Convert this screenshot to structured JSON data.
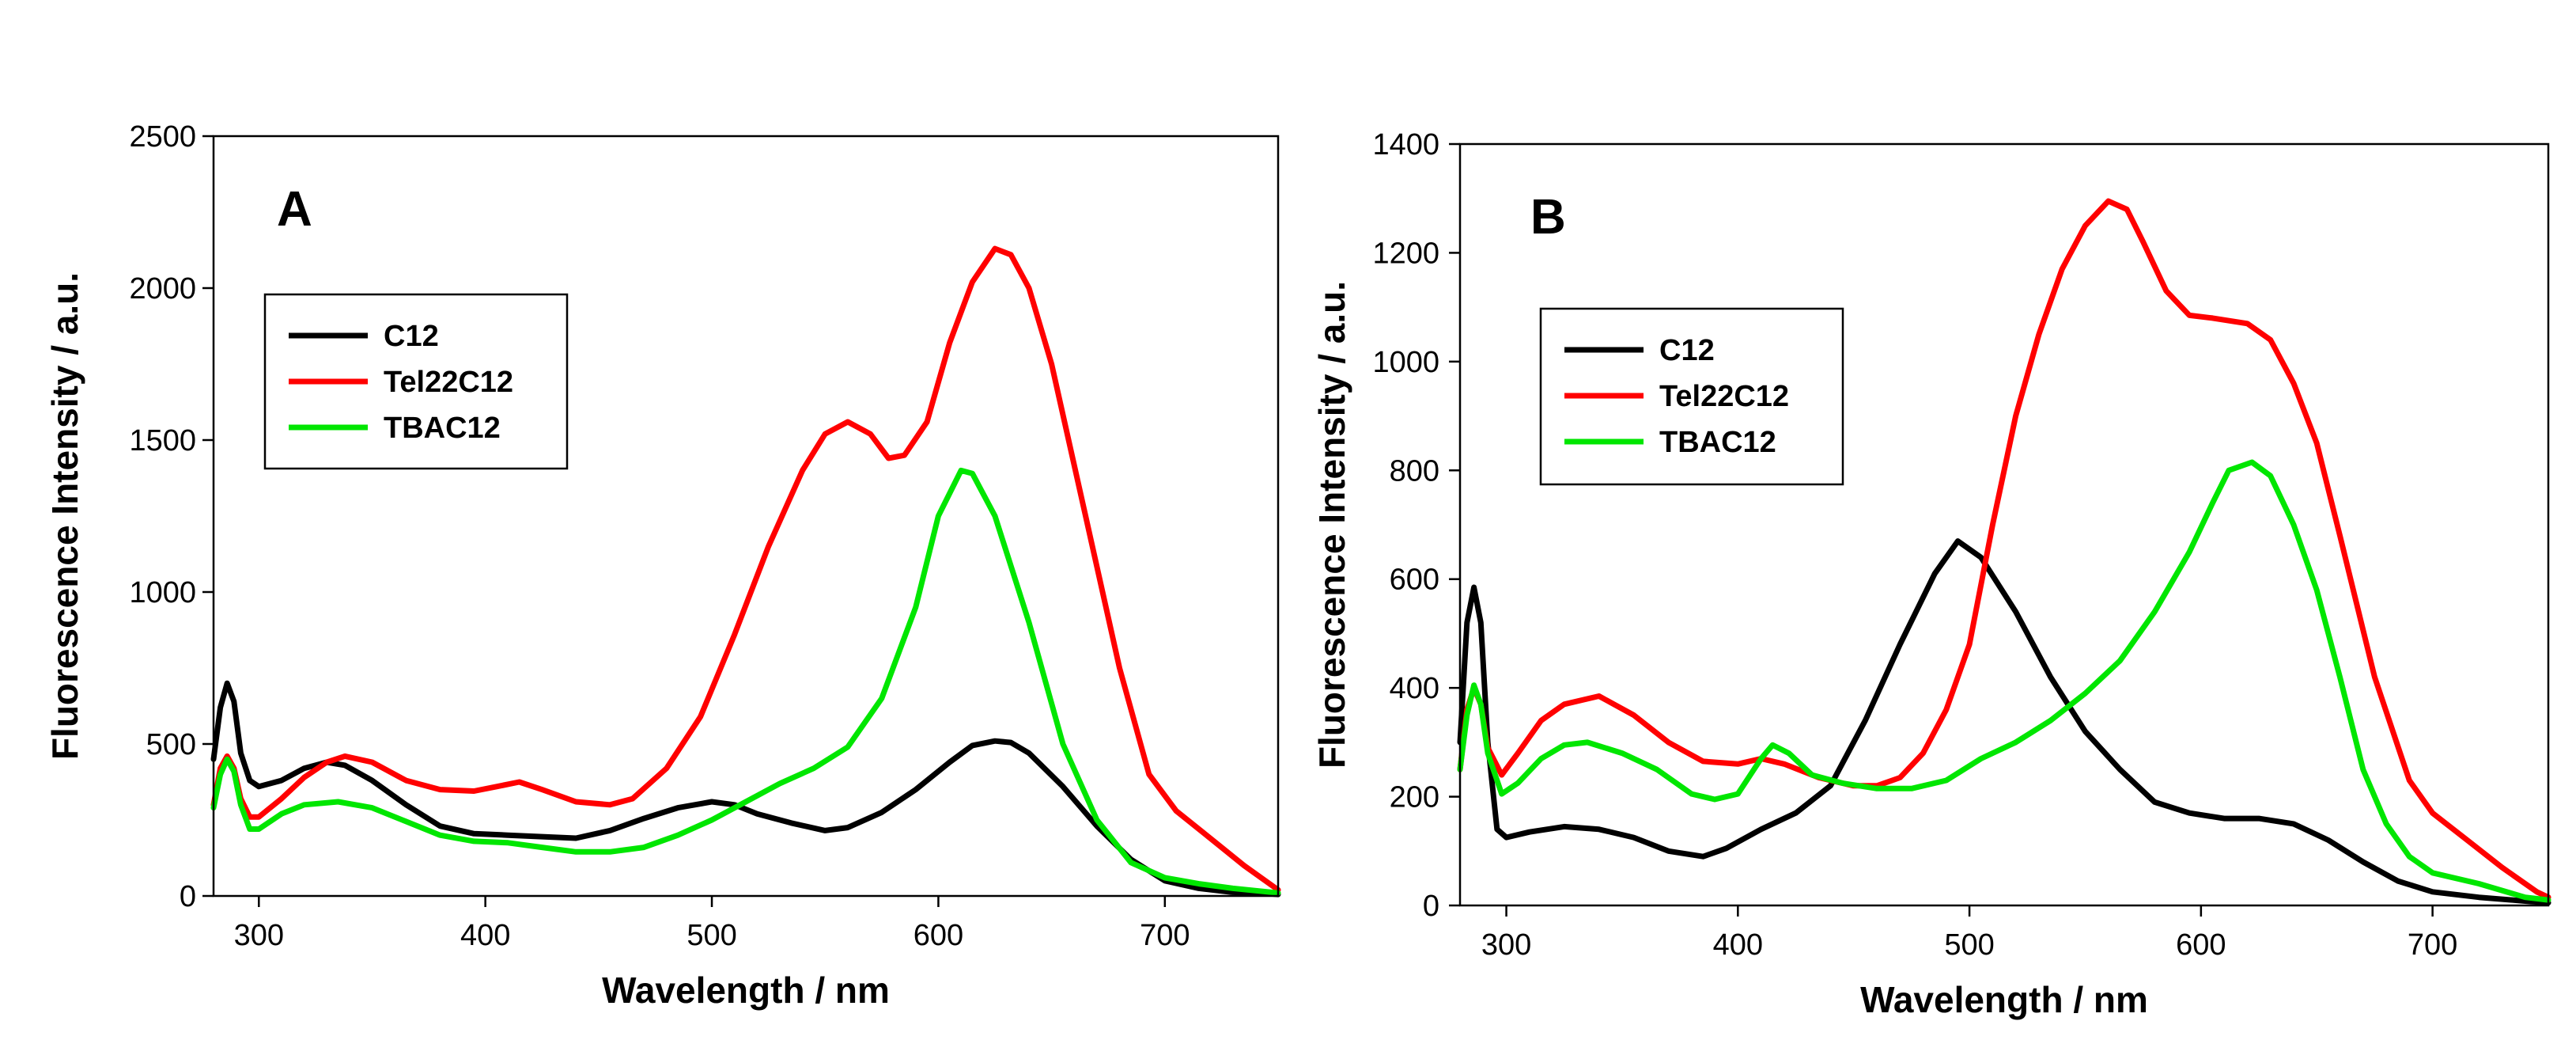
{
  "chart_data": [
    {
      "type": "line",
      "panel_label": "A",
      "xlabel": "Wavelength / nm",
      "ylabel": "Fluorescence Intensity / a.u.",
      "xlim": [
        280,
        750
      ],
      "ylim": [
        0,
        2500
      ],
      "x_ticks": [
        300,
        400,
        500,
        600,
        700
      ],
      "y_ticks": [
        0,
        500,
        1000,
        1500,
        2000,
        2500
      ],
      "legend_position": "upper-left",
      "series": [
        {
          "name": "C12",
          "color": "#000000",
          "points": [
            [
              280,
              450
            ],
            [
              283,
              620
            ],
            [
              286,
              700
            ],
            [
              289,
              640
            ],
            [
              292,
              470
            ],
            [
              296,
              380
            ],
            [
              300,
              360
            ],
            [
              310,
              380
            ],
            [
              320,
              420
            ],
            [
              330,
              440
            ],
            [
              338,
              430
            ],
            [
              350,
              380
            ],
            [
              365,
              300
            ],
            [
              380,
              230
            ],
            [
              395,
              205
            ],
            [
              410,
              200
            ],
            [
              425,
              195
            ],
            [
              440,
              190
            ],
            [
              455,
              215
            ],
            [
              470,
              255
            ],
            [
              485,
              290
            ],
            [
              500,
              310
            ],
            [
              510,
              300
            ],
            [
              520,
              270
            ],
            [
              535,
              240
            ],
            [
              550,
              215
            ],
            [
              560,
              225
            ],
            [
              575,
              275
            ],
            [
              590,
              350
            ],
            [
              605,
              440
            ],
            [
              615,
              495
            ],
            [
              625,
              510
            ],
            [
              632,
              505
            ],
            [
              640,
              470
            ],
            [
              655,
              360
            ],
            [
              670,
              230
            ],
            [
              685,
              120
            ],
            [
              700,
              50
            ],
            [
              715,
              25
            ],
            [
              730,
              12
            ],
            [
              745,
              8
            ],
            [
              750,
              5
            ]
          ]
        },
        {
          "name": "Tel22C12",
          "color": "#ff0000",
          "points": [
            [
              280,
              300
            ],
            [
              283,
              420
            ],
            [
              286,
              460
            ],
            [
              289,
              420
            ],
            [
              292,
              320
            ],
            [
              296,
              260
            ],
            [
              300,
              260
            ],
            [
              310,
              320
            ],
            [
              320,
              390
            ],
            [
              330,
              440
            ],
            [
              338,
              460
            ],
            [
              350,
              440
            ],
            [
              365,
              380
            ],
            [
              380,
              350
            ],
            [
              395,
              345
            ],
            [
              405,
              360
            ],
            [
              415,
              375
            ],
            [
              425,
              350
            ],
            [
              440,
              310
            ],
            [
              455,
              300
            ],
            [
              465,
              320
            ],
            [
              480,
              420
            ],
            [
              495,
              590
            ],
            [
              510,
              860
            ],
            [
              525,
              1150
            ],
            [
              540,
              1400
            ],
            [
              550,
              1520
            ],
            [
              560,
              1560
            ],
            [
              570,
              1520
            ],
            [
              578,
              1440
            ],
            [
              585,
              1450
            ],
            [
              595,
              1560
            ],
            [
              605,
              1820
            ],
            [
              615,
              2020
            ],
            [
              625,
              2130
            ],
            [
              632,
              2110
            ],
            [
              640,
              2000
            ],
            [
              650,
              1750
            ],
            [
              665,
              1250
            ],
            [
              680,
              750
            ],
            [
              693,
              400
            ],
            [
              705,
              280
            ],
            [
              720,
              190
            ],
            [
              735,
              100
            ],
            [
              750,
              20
            ]
          ]
        },
        {
          "name": "TBAC12",
          "color": "#00e600",
          "points": [
            [
              280,
              290
            ],
            [
              283,
              400
            ],
            [
              286,
              450
            ],
            [
              289,
              410
            ],
            [
              292,
              300
            ],
            [
              296,
              220
            ],
            [
              300,
              220
            ],
            [
              310,
              270
            ],
            [
              320,
              300
            ],
            [
              335,
              310
            ],
            [
              350,
              290
            ],
            [
              365,
              245
            ],
            [
              380,
              200
            ],
            [
              395,
              180
            ],
            [
              410,
              175
            ],
            [
              425,
              160
            ],
            [
              440,
              145
            ],
            [
              455,
              145
            ],
            [
              470,
              160
            ],
            [
              485,
              200
            ],
            [
              500,
              250
            ],
            [
              515,
              310
            ],
            [
              530,
              370
            ],
            [
              545,
              420
            ],
            [
              560,
              490
            ],
            [
              575,
              650
            ],
            [
              590,
              950
            ],
            [
              600,
              1250
            ],
            [
              610,
              1400
            ],
            [
              615,
              1390
            ],
            [
              625,
              1250
            ],
            [
              640,
              900
            ],
            [
              655,
              500
            ],
            [
              670,
              250
            ],
            [
              685,
              110
            ],
            [
              700,
              60
            ],
            [
              715,
              40
            ],
            [
              730,
              25
            ],
            [
              750,
              10
            ]
          ]
        }
      ]
    },
    {
      "type": "line",
      "panel_label": "B",
      "xlabel": "Wavelength / nm",
      "ylabel": "Fluorescence Intensity / a.u.",
      "xlim": [
        280,
        750
      ],
      "ylim": [
        0,
        1400
      ],
      "x_ticks": [
        300,
        400,
        500,
        600,
        700
      ],
      "y_ticks": [
        0,
        200,
        400,
        600,
        800,
        1000,
        1200,
        1400
      ],
      "legend_position": "upper-left",
      "series": [
        {
          "name": "C12",
          "color": "#000000",
          "points": [
            [
              280,
              300
            ],
            [
              283,
              520
            ],
            [
              286,
              585
            ],
            [
              289,
              520
            ],
            [
              292,
              300
            ],
            [
              296,
              140
            ],
            [
              300,
              125
            ],
            [
              310,
              135
            ],
            [
              325,
              145
            ],
            [
              340,
              140
            ],
            [
              355,
              125
            ],
            [
              370,
              100
            ],
            [
              385,
              90
            ],
            [
              395,
              105
            ],
            [
              410,
              140
            ],
            [
              425,
              170
            ],
            [
              440,
              220
            ],
            [
              455,
              340
            ],
            [
              470,
              480
            ],
            [
              485,
              610
            ],
            [
              495,
              670
            ],
            [
              505,
              640
            ],
            [
              520,
              540
            ],
            [
              535,
              420
            ],
            [
              550,
              320
            ],
            [
              565,
              250
            ],
            [
              580,
              190
            ],
            [
              595,
              170
            ],
            [
              610,
              160
            ],
            [
              625,
              160
            ],
            [
              640,
              150
            ],
            [
              655,
              120
            ],
            [
              670,
              80
            ],
            [
              685,
              45
            ],
            [
              700,
              25
            ],
            [
              720,
              15
            ],
            [
              740,
              8
            ],
            [
              750,
              5
            ]
          ]
        },
        {
          "name": "Tel22C12",
          "color": "#ff0000",
          "points": [
            [
              280,
              250
            ],
            [
              283,
              360
            ],
            [
              286,
              400
            ],
            [
              289,
              370
            ],
            [
              292,
              290
            ],
            [
              298,
              240
            ],
            [
              305,
              280
            ],
            [
              315,
              340
            ],
            [
              325,
              370
            ],
            [
              340,
              385
            ],
            [
              355,
              350
            ],
            [
              370,
              300
            ],
            [
              385,
              265
            ],
            [
              400,
              260
            ],
            [
              410,
              270
            ],
            [
              420,
              260
            ],
            [
              435,
              235
            ],
            [
              450,
              220
            ],
            [
              460,
              220
            ],
            [
              470,
              235
            ],
            [
              480,
              280
            ],
            [
              490,
              360
            ],
            [
              500,
              480
            ],
            [
              510,
              700
            ],
            [
              520,
              900
            ],
            [
              530,
              1050
            ],
            [
              540,
              1170
            ],
            [
              550,
              1250
            ],
            [
              560,
              1295
            ],
            [
              568,
              1280
            ],
            [
              575,
              1220
            ],
            [
              585,
              1130
            ],
            [
              595,
              1085
            ],
            [
              605,
              1080
            ],
            [
              620,
              1070
            ],
            [
              630,
              1040
            ],
            [
              640,
              960
            ],
            [
              650,
              850
            ],
            [
              660,
              680
            ],
            [
              675,
              420
            ],
            [
              690,
              230
            ],
            [
              700,
              170
            ],
            [
              715,
              120
            ],
            [
              730,
              70
            ],
            [
              745,
              25
            ],
            [
              750,
              15
            ]
          ]
        },
        {
          "name": "TBAC12",
          "color": "#00e600",
          "points": [
            [
              280,
              250
            ],
            [
              283,
              350
            ],
            [
              286,
              405
            ],
            [
              289,
              370
            ],
            [
              292,
              280
            ],
            [
              298,
              205
            ],
            [
              305,
              225
            ],
            [
              315,
              270
            ],
            [
              325,
              295
            ],
            [
              335,
              300
            ],
            [
              350,
              280
            ],
            [
              365,
              250
            ],
            [
              380,
              205
            ],
            [
              390,
              195
            ],
            [
              400,
              205
            ],
            [
              410,
              270
            ],
            [
              415,
              295
            ],
            [
              422,
              280
            ],
            [
              432,
              240
            ],
            [
              445,
              225
            ],
            [
              460,
              215
            ],
            [
              475,
              215
            ],
            [
              490,
              230
            ],
            [
              505,
              270
            ],
            [
              520,
              300
            ],
            [
              535,
              340
            ],
            [
              550,
              390
            ],
            [
              565,
              450
            ],
            [
              580,
              540
            ],
            [
              595,
              650
            ],
            [
              605,
              740
            ],
            [
              612,
              800
            ],
            [
              622,
              815
            ],
            [
              630,
              790
            ],
            [
              640,
              700
            ],
            [
              650,
              580
            ],
            [
              660,
              420
            ],
            [
              670,
              250
            ],
            [
              680,
              150
            ],
            [
              690,
              90
            ],
            [
              700,
              60
            ],
            [
              720,
              40
            ],
            [
              740,
              15
            ],
            [
              750,
              10
            ]
          ]
        }
      ]
    }
  ]
}
